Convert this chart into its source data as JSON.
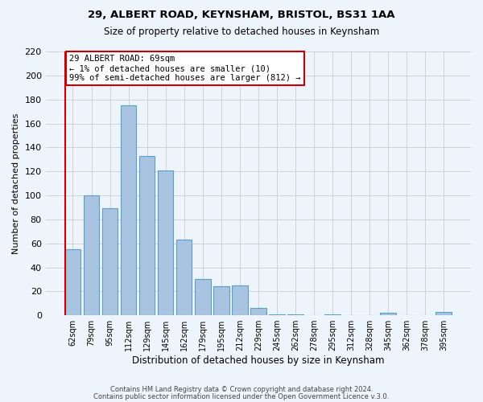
{
  "title1": "29, ALBERT ROAD, KEYNSHAM, BRISTOL, BS31 1AA",
  "title2": "Size of property relative to detached houses in Keynsham",
  "xlabel": "Distribution of detached houses by size in Keynsham",
  "ylabel": "Number of detached properties",
  "bar_labels": [
    "62sqm",
    "79sqm",
    "95sqm",
    "112sqm",
    "129sqm",
    "145sqm",
    "162sqm",
    "179sqm",
    "195sqm",
    "212sqm",
    "229sqm",
    "245sqm",
    "262sqm",
    "278sqm",
    "295sqm",
    "312sqm",
    "328sqm",
    "345sqm",
    "362sqm",
    "378sqm",
    "395sqm"
  ],
  "bar_values": [
    55,
    100,
    89,
    175,
    133,
    121,
    63,
    30,
    24,
    25,
    6,
    1,
    1,
    0,
    1,
    0,
    0,
    2,
    0,
    0,
    3
  ],
  "bar_color": "#a8c4e0",
  "bar_edge_color": "#5a9ec9",
  "background_color": "#eef4fb",
  "ylim": [
    0,
    220
  ],
  "annotation_box_title": "29 ALBERT ROAD: 69sqm",
  "annotation_line1": "← 1% of detached houses are smaller (10)",
  "annotation_line2": "99% of semi-detached houses are larger (812) →",
  "annotation_box_color": "#ffffff",
  "annotation_box_edge_color": "#cc0000",
  "vline_color": "#cc0000",
  "footer1": "Contains HM Land Registry data © Crown copyright and database right 2024.",
  "footer2": "Contains public sector information licensed under the Open Government Licence v.3.0."
}
